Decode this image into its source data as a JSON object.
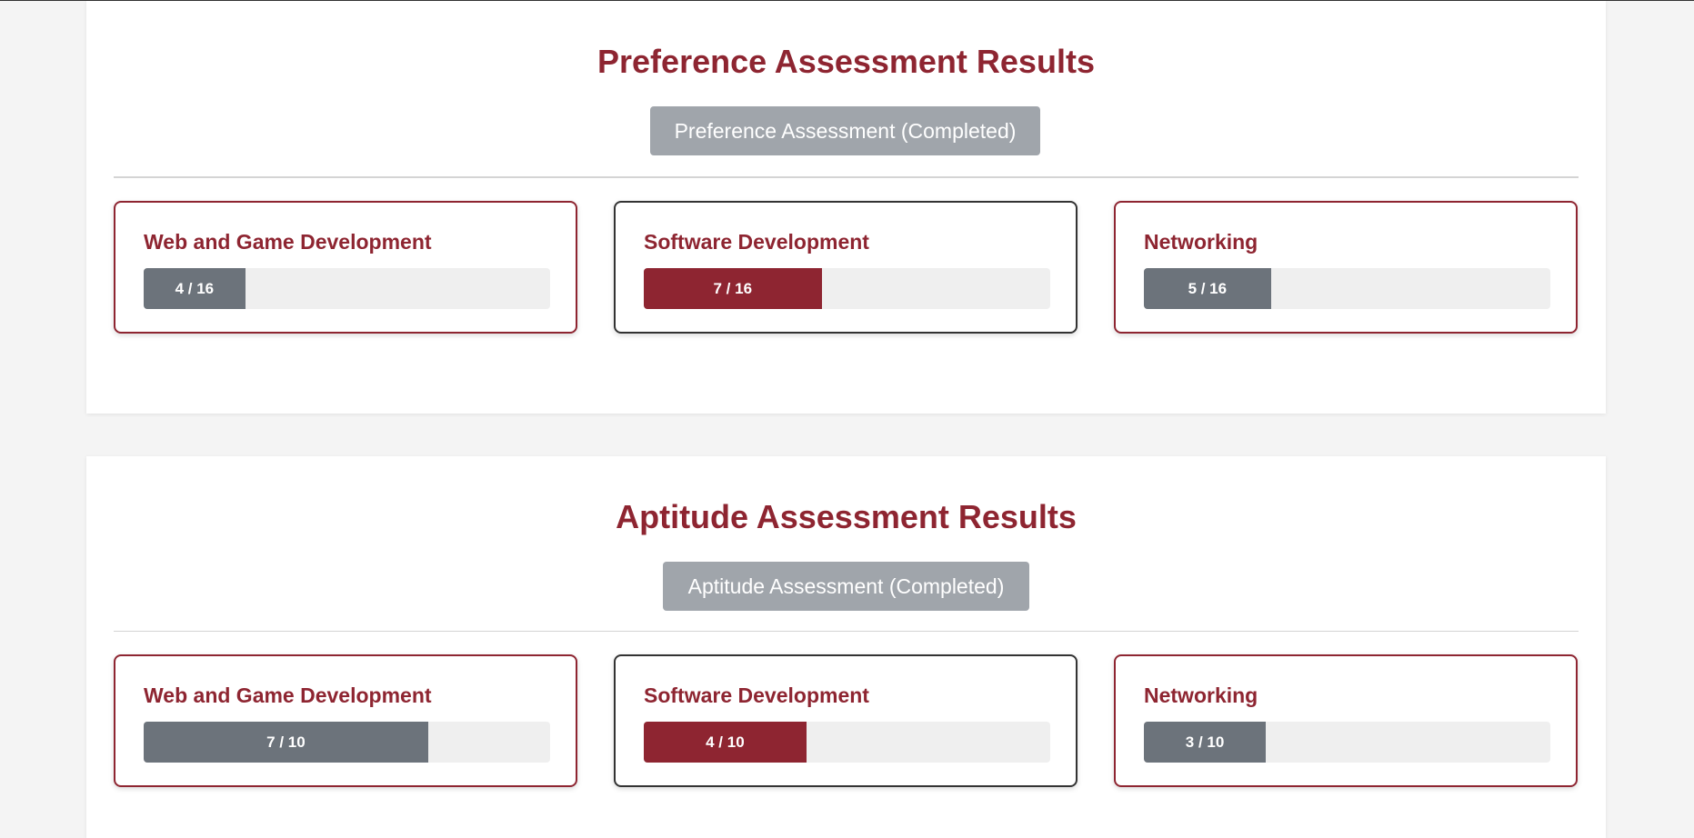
{
  "sections": [
    {
      "title": "Preference Assessment Results",
      "status_button": "Preference Assessment (Completed)",
      "cards": [
        {
          "title": "Web and Game Development",
          "label": "4 / 16",
          "value": 4,
          "max": 16,
          "fill_color": "#6c737b",
          "border_color": "#8e2531"
        },
        {
          "title": "Software Development",
          "label": "7 / 16",
          "value": 7,
          "max": 16,
          "fill_color": "#8e2531",
          "border_color": "#333333"
        },
        {
          "title": "Networking",
          "label": "5 / 16",
          "value": 5,
          "max": 16,
          "fill_color": "#6c737b",
          "border_color": "#8e2531"
        }
      ]
    },
    {
      "title": "Aptitude Assessment Results",
      "status_button": "Aptitude Assessment (Completed)",
      "cards": [
        {
          "title": "Web and Game Development",
          "label": "7 / 10",
          "value": 7,
          "max": 10,
          "fill_color": "#6c737b",
          "border_color": "#8e2531"
        },
        {
          "title": "Software Development",
          "label": "4 / 10",
          "value": 4,
          "max": 10,
          "fill_color": "#8e2531",
          "border_color": "#333333"
        },
        {
          "title": "Networking",
          "label": "3 / 10",
          "value": 3,
          "max": 10,
          "fill_color": "#6c737b",
          "border_color": "#8e2531"
        }
      ]
    }
  ],
  "colors": {
    "accent": "#8e2531",
    "bar_gray": "#6c737b",
    "button_gray": "#a0a5ab",
    "track": "#efefef"
  }
}
